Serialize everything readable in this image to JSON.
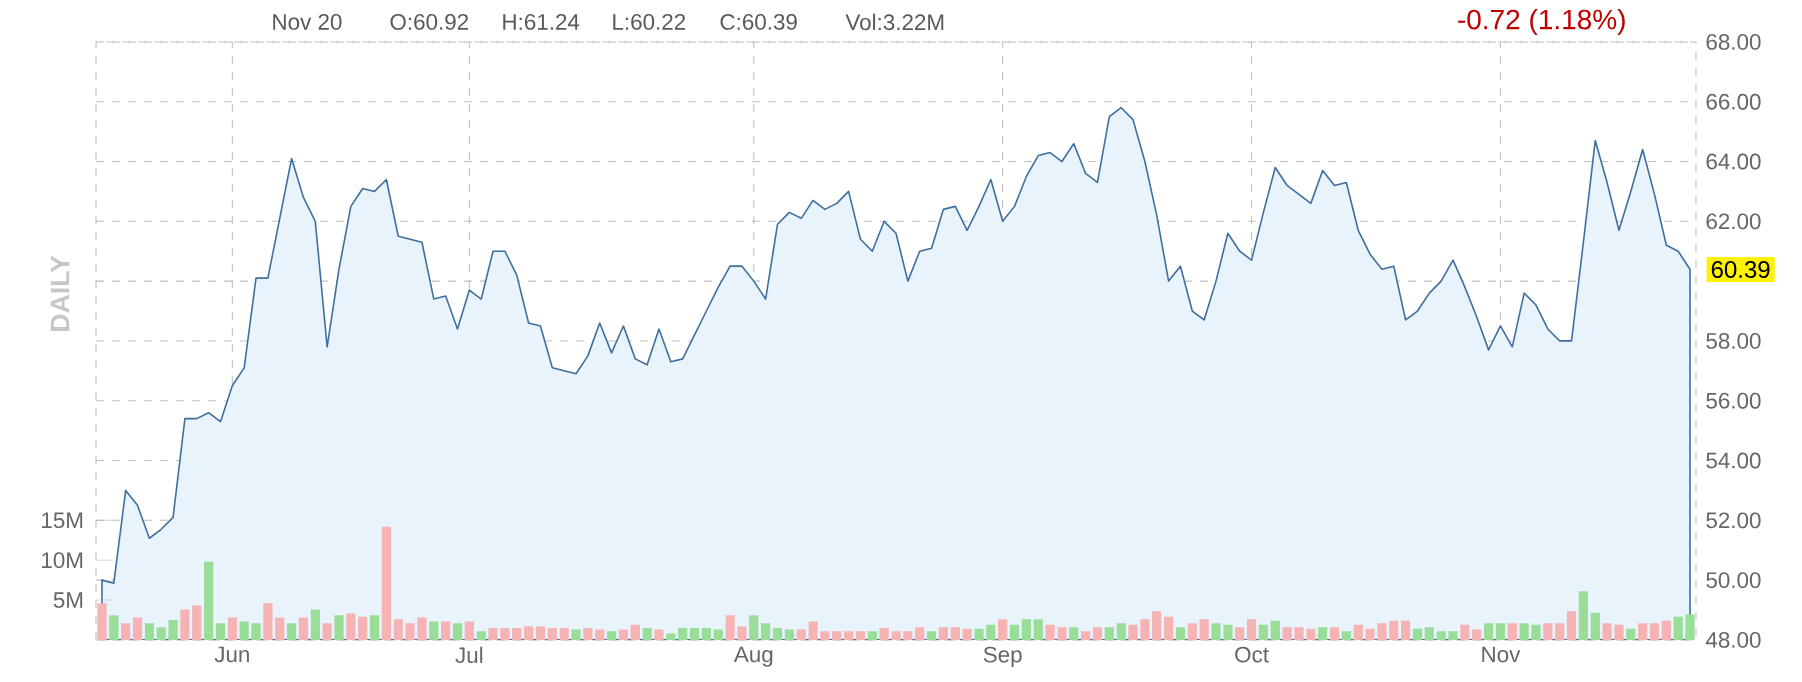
{
  "chart_data": {
    "type": "area",
    "annotations": [
      "Nov 20",
      "O:60.92",
      "H:61.24",
      "L:60.22",
      "C:60.39",
      "Vol:3.22M",
      "-0.72 (1.18%)",
      "DAILY",
      "60.39"
    ],
    "categories": [
      null,
      null,
      null,
      null,
      null,
      null,
      null,
      null,
      null,
      null,
      null,
      "Jun",
      null,
      null,
      null,
      null,
      null,
      null,
      null,
      null,
      null,
      null,
      null,
      null,
      null,
      null,
      null,
      null,
      null,
      null,
      null,
      "Jul",
      null,
      null,
      null,
      null,
      null,
      null,
      null,
      null,
      null,
      null,
      null,
      null,
      null,
      null,
      null,
      null,
      null,
      null,
      null,
      null,
      null,
      null,
      null,
      "Aug",
      null,
      null,
      null,
      null,
      null,
      null,
      null,
      null,
      null,
      null,
      null,
      null,
      null,
      null,
      null,
      null,
      null,
      null,
      null,
      null,
      "Sep",
      null,
      null,
      null,
      null,
      null,
      null,
      null,
      null,
      null,
      null,
      null,
      null,
      null,
      null,
      null,
      null,
      null,
      null,
      null,
      null,
      "Oct",
      null,
      null,
      null,
      null,
      null,
      null,
      null,
      null,
      null,
      null,
      null,
      null,
      null,
      null,
      null,
      null,
      null,
      null,
      null,
      null,
      "Nov",
      null,
      null,
      null,
      null,
      null,
      null,
      null,
      null,
      null,
      null,
      null,
      null,
      null,
      null,
      null,
      null
    ],
    "ylim": [
      48,
      68
    ],
    "yticks": [
      {
        "value": 48,
        "label": "48.00"
      },
      {
        "value": 50,
        "label": "50.00"
      },
      {
        "value": 52,
        "label": "52.00"
      },
      {
        "value": 54,
        "label": "54.00"
      },
      {
        "value": 56,
        "label": "56.00"
      },
      {
        "value": 58,
        "label": "58.00"
      },
      {
        "value": 60,
        "label": null
      },
      {
        "value": 62,
        "label": "62.00"
      },
      {
        "value": 64,
        "label": "64.00"
      },
      {
        "value": 66,
        "label": "66.00"
      },
      {
        "value": 68,
        "label": "68.00"
      }
    ],
    "y2lim": [
      0,
      75
    ],
    "y2ticks": [
      {
        "value": 5,
        "label": "5M"
      },
      {
        "value": 10,
        "label": "10M"
      },
      {
        "value": 15,
        "label": "15M"
      }
    ],
    "grid": true,
    "series": [
      {
        "color": "#e9f3fc",
        "values": [
          50.0,
          49.9,
          53.0,
          52.5,
          51.4,
          51.7,
          52.1,
          55.4,
          55.4,
          55.6,
          55.3,
          56.5,
          57.1,
          60.1,
          60.1,
          62.1,
          64.1,
          62.8,
          62.0,
          57.8,
          60.4,
          62.5,
          63.1,
          63.0,
          63.4,
          61.5,
          61.4,
          61.3,
          59.4,
          59.5,
          58.4,
          59.7,
          59.4,
          61.0,
          61.0,
          60.2,
          58.6,
          58.5,
          57.1,
          57.0,
          56.9,
          57.5,
          58.6,
          57.6,
          58.5,
          57.4,
          57.2,
          58.4,
          57.3,
          57.4,
          58.2,
          59.0,
          59.8,
          60.5,
          60.5,
          60.0,
          59.4,
          61.9,
          62.3,
          62.1,
          62.7,
          62.4,
          62.6,
          63.0,
          61.4,
          61.0,
          62.0,
          61.6,
          60.0,
          61.0,
          61.1,
          62.4,
          62.5,
          61.7,
          62.5,
          63.4,
          62.0,
          62.5,
          63.5,
          64.2,
          64.3,
          64.0,
          64.6,
          63.6,
          63.3,
          65.5,
          65.8,
          65.4,
          64.0,
          62.2,
          60.0,
          60.5,
          59.0,
          58.7,
          60.0,
          61.6,
          61.0,
          60.7,
          62.3,
          63.8,
          63.2,
          62.9,
          62.6,
          63.7,
          63.2,
          63.3,
          61.7,
          60.9,
          60.4,
          60.5,
          58.7,
          59.0,
          59.6,
          60.0,
          60.7,
          59.8,
          58.8,
          57.7,
          58.5,
          57.8,
          59.6,
          59.2,
          58.4,
          58.0,
          58.0,
          61.3,
          64.7,
          63.3,
          61.7,
          63.0,
          64.4,
          62.9,
          61.2,
          61.0,
          60.39
        ]
      },
      {
        "type": "bar",
        "axis": "y2",
        "values": [
          4.6,
          3.1,
          2.1,
          2.8,
          2.1,
          1.6,
          2.5,
          3.8,
          4.3,
          9.8,
          2.1,
          2.8,
          2.3,
          2.1,
          4.6,
          2.8,
          2.1,
          2.8,
          3.8,
          2.1,
          3.1,
          3.3,
          2.9,
          3.1,
          14.2,
          2.6,
          2.1,
          2.8,
          2.3,
          2.3,
          2.1,
          2.3,
          1.1,
          1.5,
          1.5,
          1.5,
          1.7,
          1.7,
          1.5,
          1.5,
          1.3,
          1.5,
          1.3,
          1.1,
          1.3,
          1.9,
          1.5,
          1.3,
          0.8,
          1.5,
          1.5,
          1.5,
          1.3,
          3.1,
          1.7,
          3.1,
          2.1,
          1.5,
          1.3,
          1.3,
          2.3,
          1.1,
          1.1,
          1.1,
          1.1,
          1.1,
          1.5,
          1.1,
          1.1,
          1.6,
          1.1,
          1.6,
          1.6,
          1.4,
          1.4,
          1.9,
          2.6,
          1.9,
          2.6,
          2.6,
          1.9,
          1.6,
          1.6,
          1.1,
          1.6,
          1.6,
          2.1,
          1.9,
          2.6,
          3.6,
          2.9,
          1.6,
          2.1,
          2.6,
          2.1,
          1.9,
          1.6,
          2.6,
          1.9,
          2.4,
          1.6,
          1.6,
          1.4,
          1.6,
          1.6,
          1.1,
          1.9,
          1.4,
          2.1,
          2.4,
          2.4,
          1.4,
          1.6,
          1.1,
          1.1,
          1.9,
          1.3,
          2.1,
          2.1,
          2.1,
          2.1,
          1.9,
          2.1,
          2.1,
          3.6,
          6.1,
          3.4,
          2.1,
          1.9,
          1.4,
          2.1,
          2.1,
          2.4,
          2.9,
          3.2
        ],
        "colors": [
          "#f5b3b3",
          "#99dd99",
          "#f5b3b3",
          "#f5b3b3",
          "#99dd99",
          "#99dd99",
          "#99dd99",
          "#f5b3b3",
          "#f5b3b3",
          "#99dd99",
          "#99dd99",
          "#f5b3b3",
          "#99dd99",
          "#99dd99",
          "#f5b3b3",
          "#f5b3b3",
          "#99dd99",
          "#f5b3b3",
          "#99dd99",
          "#f5b3b3",
          "#99dd99",
          "#f5b3b3",
          "#f5b3b3",
          "#99dd99",
          "#f5b3b3",
          "#f5b3b3",
          "#f5b3b3",
          "#f5b3b3",
          "#99dd99",
          "#f5b3b3",
          "#99dd99",
          "#f5b3b3",
          "#99dd99",
          "#f5b3b3",
          "#f5b3b3",
          "#f5b3b3",
          "#f5b3b3",
          "#f5b3b3",
          "#f5b3b3",
          "#f5b3b3",
          "#99dd99",
          "#f5b3b3",
          "#f5b3b3",
          "#99dd99",
          "#f5b3b3",
          "#f5b3b3",
          "#99dd99",
          "#f5b3b3",
          "#99dd99",
          "#99dd99",
          "#99dd99",
          "#99dd99",
          "#99dd99",
          "#f5b3b3",
          "#f5b3b3",
          "#99dd99",
          "#99dd99",
          "#99dd99",
          "#99dd99",
          "#f5b3b3",
          "#f5b3b3",
          "#f5b3b3",
          "#f5b3b3",
          "#f5b3b3",
          "#f5b3b3",
          "#99dd99",
          "#f5b3b3",
          "#f5b3b3",
          "#f5b3b3",
          "#f5b3b3",
          "#99dd99",
          "#f5b3b3",
          "#f5b3b3",
          "#f5b3b3",
          "#99dd99",
          "#99dd99",
          "#f5b3b3",
          "#99dd99",
          "#99dd99",
          "#99dd99",
          "#f5b3b3",
          "#f5b3b3",
          "#99dd99",
          "#f5b3b3",
          "#f5b3b3",
          "#99dd99",
          "#99dd99",
          "#f5b3b3",
          "#f5b3b3",
          "#f5b3b3",
          "#f5b3b3",
          "#99dd99",
          "#f5b3b3",
          "#f5b3b3",
          "#99dd99",
          "#99dd99",
          "#f5b3b3",
          "#f5b3b3",
          "#99dd99",
          "#99dd99",
          "#f5b3b3",
          "#f5b3b3",
          "#f5b3b3",
          "#99dd99",
          "#f5b3b3",
          "#99dd99",
          "#f5b3b3",
          "#f5b3b3",
          "#f5b3b3",
          "#f5b3b3",
          "#f5b3b3",
          "#99dd99",
          "#99dd99",
          "#99dd99",
          "#99dd99",
          "#f5b3b3",
          "#f5b3b3",
          "#99dd99",
          "#99dd99",
          "#f5b3b3",
          "#99dd99",
          "#99dd99",
          "#f5b3b3",
          "#f5b3b3",
          "#f5b3b3",
          "#99dd99",
          "#99dd99",
          "#f5b3b3",
          "#f5b3b3",
          "#99dd99",
          "#f5b3b3",
          "#f5b3b3",
          "#f5b3b3",
          "#99dd99",
          "#99dd99"
        ]
      }
    ]
  }
}
